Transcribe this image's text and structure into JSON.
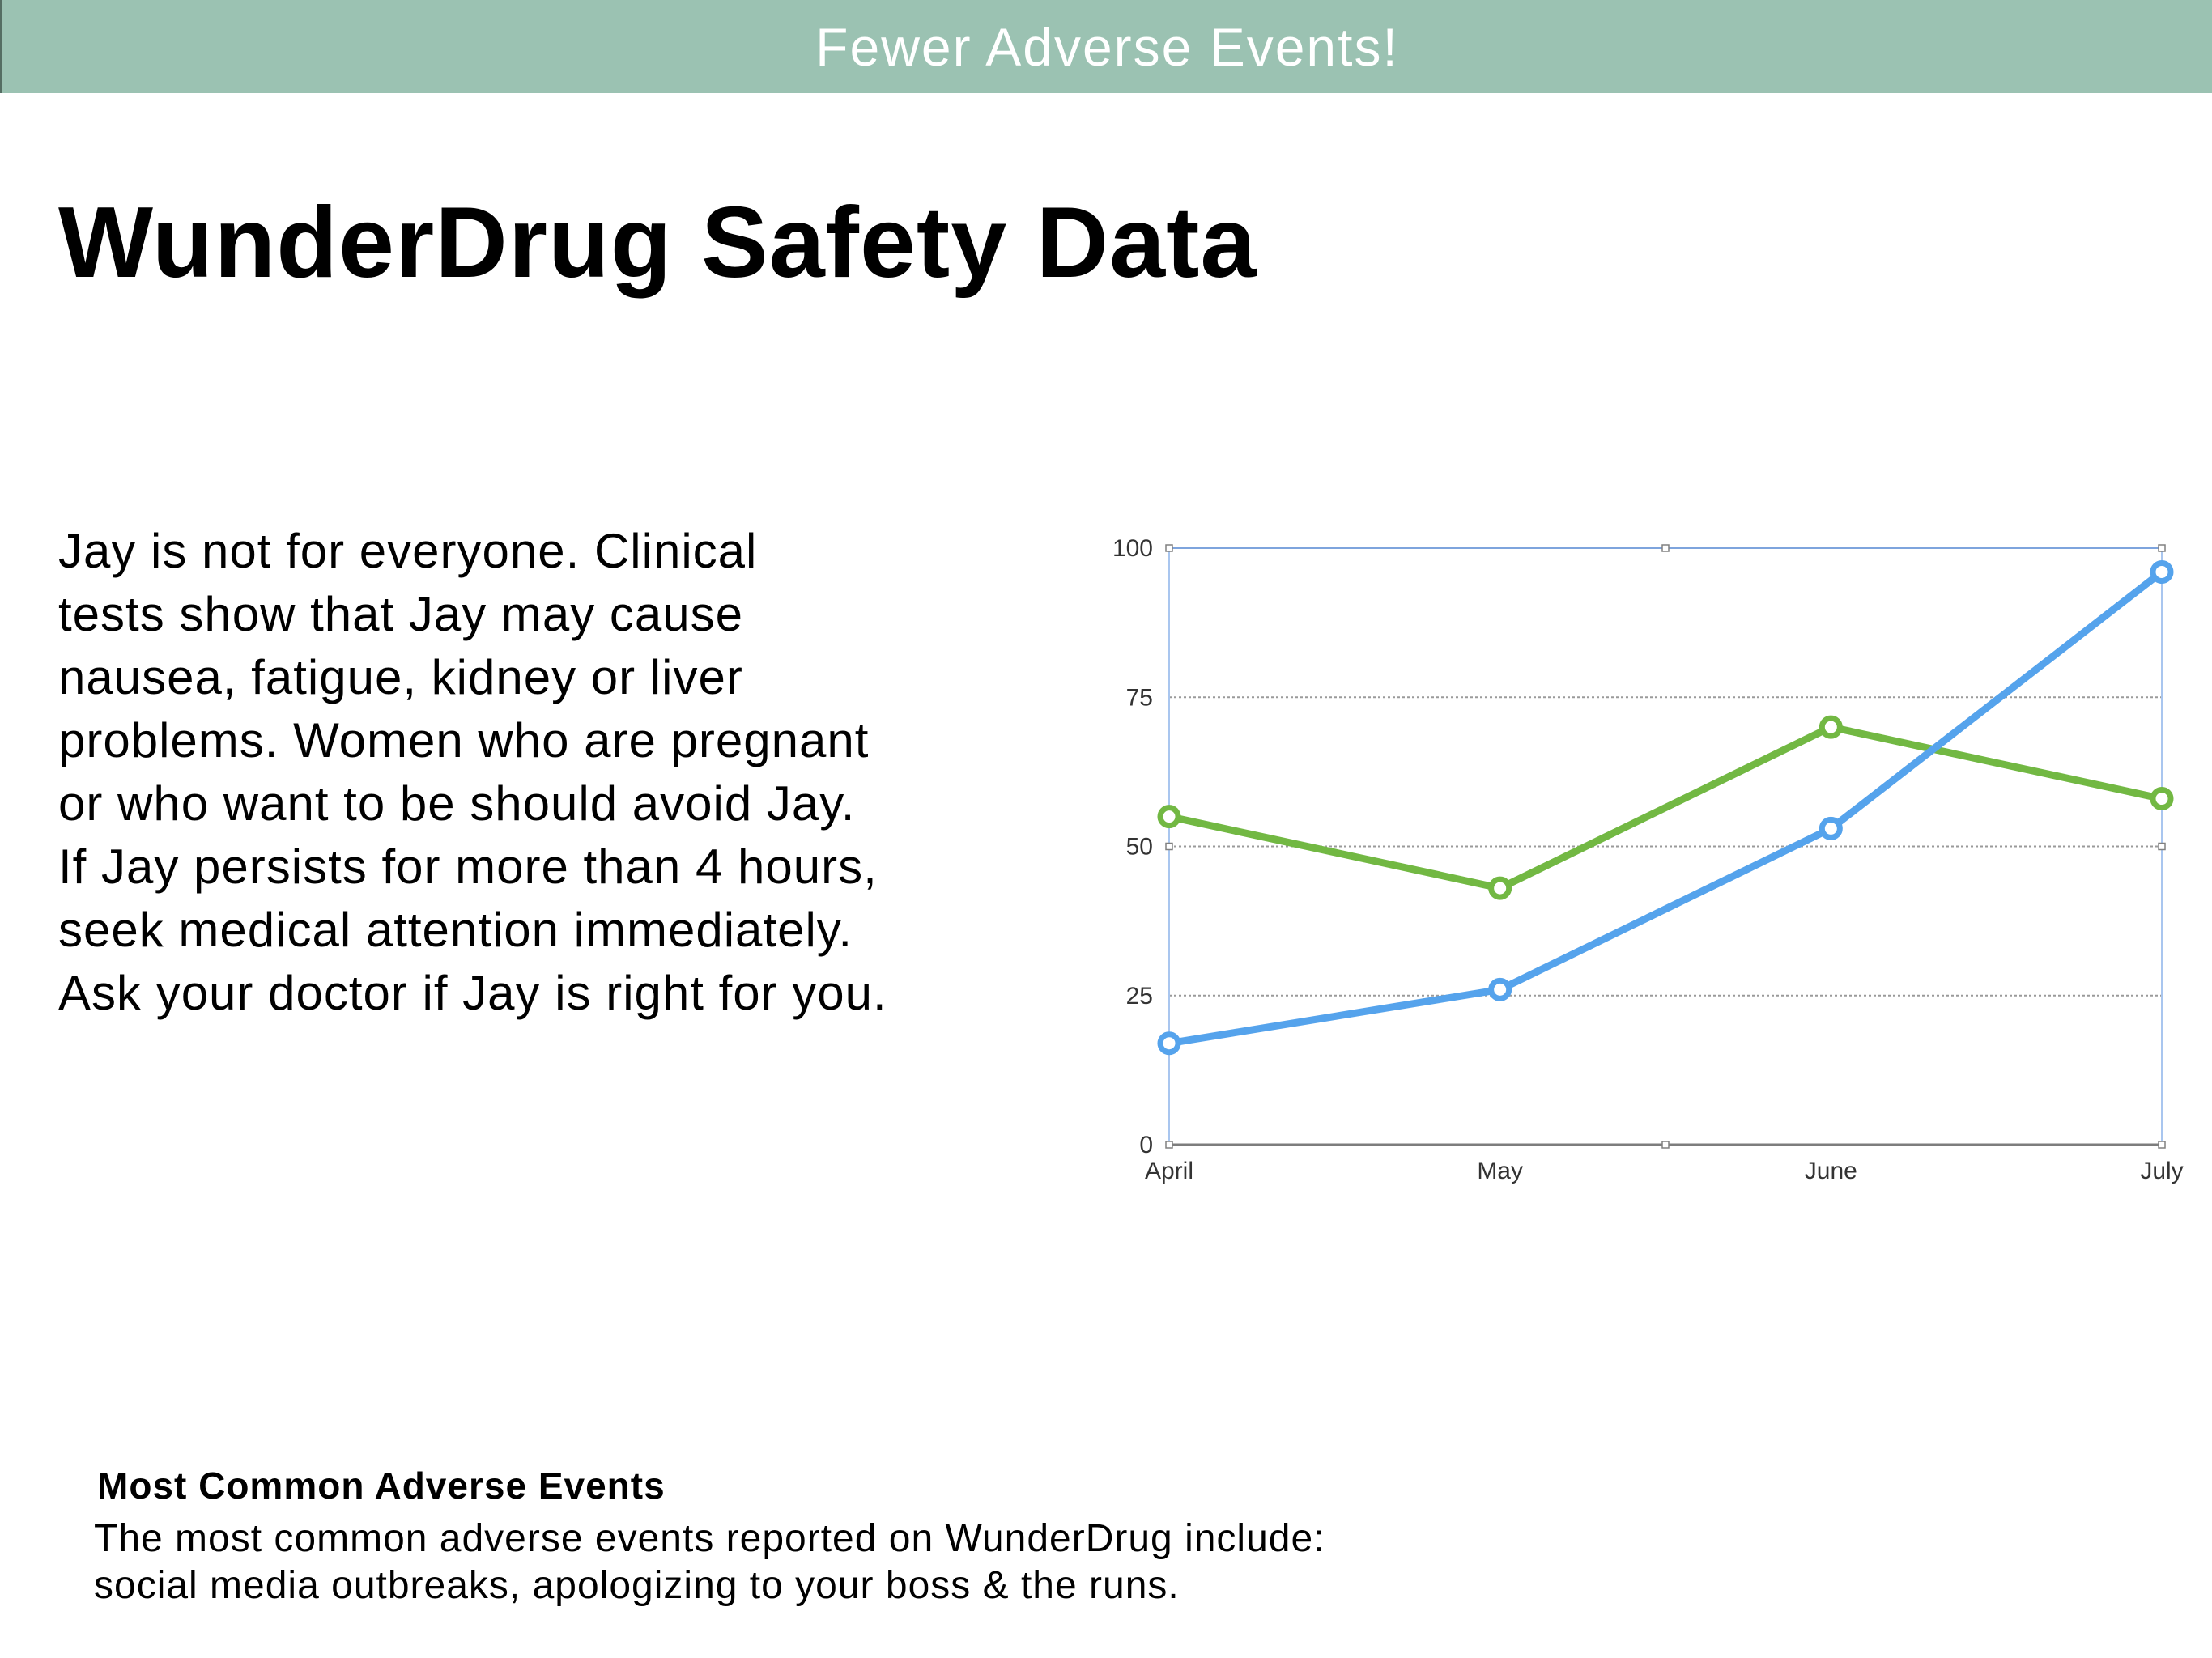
{
  "banner": {
    "text": "Fewer Adverse Events!",
    "background": "#9bc2b2"
  },
  "title": "WunderDrug Safety Data",
  "body": "Jay is not for everyone. Clinical\ntests show that Jay may cause\nnausea, fatigue, kidney or liver\nproblems. Women who are pregnant\nor who want to be should avoid Jay.\nIf Jay persists for more than 4 hours,\nseek medical attention immediately.\nAsk your doctor if Jay is right for you.",
  "chart_data": {
    "type": "line",
    "title": "",
    "xlabel": "",
    "ylabel": "",
    "categories": [
      "April",
      "May",
      "June",
      "July"
    ],
    "ylim": [
      0,
      100
    ],
    "yticks": [
      0,
      25,
      50,
      75,
      100
    ],
    "grid": true,
    "legend": "none",
    "series": [
      {
        "color": "#72b843",
        "values": [
          55,
          43,
          70,
          58
        ]
      },
      {
        "color": "#55a3ec",
        "values": [
          17,
          26,
          53,
          96
        ]
      }
    ]
  },
  "footer": {
    "heading": "Most Common Adverse Events",
    "text": "The most common adverse events reported on WunderDrug include:\nsocial media outbreaks, apologizing to your boss & the runs."
  }
}
